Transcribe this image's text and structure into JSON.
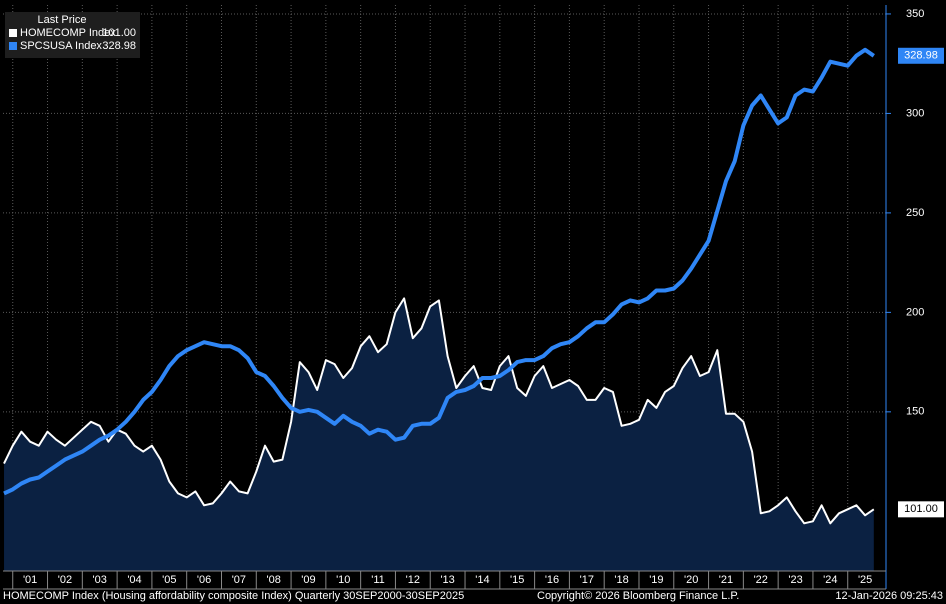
{
  "chart_data": {
    "type": "line",
    "legend_title": "Last Price",
    "footer": {
      "description": "HOMECOMP Index (Housing affordability composite Index) Quarterly 30SEP2000-30SEP2025",
      "copyright": "Copyright© 2026 Bloomberg Finance L.P.",
      "timestamp": "12-Jan-2026 09:25:43"
    },
    "x": [
      2000.75,
      2001,
      2001.25,
      2001.5,
      2001.75,
      2002,
      2002.25,
      2002.5,
      2002.75,
      2003,
      2003.25,
      2003.5,
      2003.75,
      2004,
      2004.25,
      2004.5,
      2004.75,
      2005,
      2005.25,
      2005.5,
      2005.75,
      2006,
      2006.25,
      2006.5,
      2006.75,
      2007,
      2007.25,
      2007.5,
      2007.75,
      2008,
      2008.25,
      2008.5,
      2008.75,
      2009,
      2009.25,
      2009.5,
      2009.75,
      2010,
      2010.25,
      2010.5,
      2010.75,
      2011,
      2011.25,
      2011.5,
      2011.75,
      2012,
      2012.25,
      2012.5,
      2012.75,
      2013,
      2013.25,
      2013.5,
      2013.75,
      2014,
      2014.25,
      2014.5,
      2014.75,
      2015,
      2015.25,
      2015.5,
      2015.75,
      2016,
      2016.25,
      2016.5,
      2016.75,
      2017,
      2017.25,
      2017.5,
      2017.75,
      2018,
      2018.25,
      2018.5,
      2018.75,
      2019,
      2019.25,
      2019.5,
      2019.75,
      2020,
      2020.25,
      2020.5,
      2020.75,
      2021,
      2021.25,
      2021.5,
      2021.75,
      2022,
      2022.25,
      2022.5,
      2022.75,
      2023,
      2023.25,
      2023.5,
      2023.75,
      2024,
      2024.25,
      2024.5,
      2024.75,
      2025,
      2025.25,
      2025.5,
      2025.75
    ],
    "series": [
      {
        "name": "HOMECOMP Index",
        "color": "#ffffff",
        "fill": "#0b2142",
        "last_label": "101.00",
        "label_color": "#000000",
        "values": [
          124,
          133,
          140,
          135,
          133,
          140,
          136,
          133,
          137,
          141,
          145,
          143,
          135,
          141,
          139,
          133,
          130,
          133,
          126,
          115,
          109,
          107,
          110,
          103,
          104,
          109,
          115,
          110,
          109,
          120,
          133,
          125,
          126,
          145,
          175,
          170,
          161,
          176,
          174,
          167,
          172,
          183,
          188,
          180,
          184,
          200,
          207,
          187,
          192,
          203,
          206,
          178,
          162,
          168,
          173,
          162,
          161,
          173,
          178,
          162,
          158,
          168,
          173,
          162,
          164,
          166,
          163,
          156,
          156,
          162,
          160,
          143,
          144,
          146,
          156,
          152,
          160,
          163,
          172,
          178,
          168,
          170,
          181,
          149,
          149,
          145,
          130,
          99,
          100,
          103,
          107,
          100,
          94,
          95,
          103,
          94,
          99,
          101,
          103,
          98,
          101
        ]
      },
      {
        "name": "SPCSUSA Index",
        "color": "#2f86f6",
        "last_label": "328.98",
        "label_color": "#ffffff",
        "values": [
          109,
          111,
          114,
          116,
          117,
          120,
          123,
          126,
          128,
          130,
          133,
          136,
          138,
          141,
          145,
          150,
          156,
          160,
          166,
          173,
          178,
          181,
          183,
          185,
          184,
          183,
          183,
          181,
          177,
          170,
          168,
          163,
          157,
          152,
          150,
          151,
          150,
          147,
          144,
          148,
          145,
          143,
          139,
          141,
          140,
          136,
          137,
          143,
          144,
          144,
          147,
          157,
          160,
          161,
          163,
          167,
          167,
          168,
          171,
          175,
          176,
          176,
          178,
          182,
          184,
          185,
          188,
          192,
          195,
          195,
          199,
          204,
          206,
          205,
          207,
          211,
          211,
          212,
          216,
          222,
          229,
          236,
          251,
          266,
          276,
          294,
          304,
          309,
          302,
          295,
          298,
          309,
          312,
          311,
          318,
          326,
          325,
          324,
          329,
          332,
          328.98
        ]
      }
    ],
    "xlim": [
      2000.72,
      2026.1
    ],
    "xticks": [
      {
        "value": 2001,
        "label": "'01"
      },
      {
        "value": 2002,
        "label": "'02"
      },
      {
        "value": 2003,
        "label": "'03"
      },
      {
        "value": 2004,
        "label": "'04"
      },
      {
        "value": 2005,
        "label": "'05"
      },
      {
        "value": 2006,
        "label": "'06"
      },
      {
        "value": 2007,
        "label": "'07"
      },
      {
        "value": 2008,
        "label": "'08"
      },
      {
        "value": 2009,
        "label": "'09"
      },
      {
        "value": 2010,
        "label": "'10"
      },
      {
        "value": 2011,
        "label": "'11"
      },
      {
        "value": 2012,
        "label": "'12"
      },
      {
        "value": 2013,
        "label": "'13"
      },
      {
        "value": 2014,
        "label": "'14"
      },
      {
        "value": 2015,
        "label": "'15"
      },
      {
        "value": 2016,
        "label": "'16"
      },
      {
        "value": 2017,
        "label": "'17"
      },
      {
        "value": 2018,
        "label": "'18"
      },
      {
        "value": 2019,
        "label": "'19"
      },
      {
        "value": 2020,
        "label": "'20"
      },
      {
        "value": 2021,
        "label": "'21"
      },
      {
        "value": 2022,
        "label": "'22"
      },
      {
        "value": 2023,
        "label": "'23"
      },
      {
        "value": 2024,
        "label": "'24"
      },
      {
        "value": 2025,
        "label": "'25"
      }
    ],
    "ylim": [
      70,
      354.5
    ],
    "yticks": [
      150,
      200,
      250,
      300,
      350
    ],
    "grid": true
  }
}
